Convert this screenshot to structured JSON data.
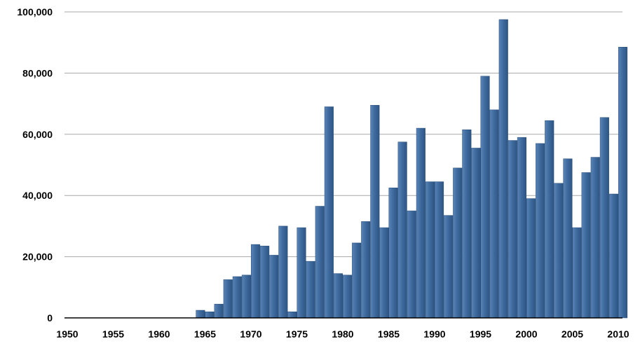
{
  "chart_data": {
    "type": "bar",
    "title": "",
    "xlabel": "",
    "ylabel": "",
    "x_ticks": [
      "1950",
      "1955",
      "1960",
      "1965",
      "1970",
      "1975",
      "1980",
      "1985",
      "1990",
      "1995",
      "2000",
      "2005",
      "2010"
    ],
    "y_ticks": [
      "0",
      "20,000",
      "40,000",
      "60,000",
      "80,000",
      "100,000"
    ],
    "xlim": [
      1950,
      2010
    ],
    "ylim": [
      0,
      100000
    ],
    "grid": true,
    "bar_color": "#3f6b9f",
    "x": [
      1964,
      1965,
      1966,
      1967,
      1968,
      1969,
      1970,
      1971,
      1972,
      1973,
      1974,
      1975,
      1976,
      1977,
      1978,
      1979,
      1980,
      1981,
      1982,
      1983,
      1984,
      1985,
      1986,
      1987,
      1988,
      1989,
      1990,
      1991,
      1992,
      1993,
      1994,
      1995,
      1996,
      1997,
      1998,
      1999,
      2000,
      2001,
      2002,
      2003,
      2004,
      2005,
      2006,
      2007,
      2008,
      2009,
      2010
    ],
    "values": [
      2500,
      2000,
      4500,
      12500,
      13500,
      14000,
      24000,
      23500,
      20500,
      30000,
      2000,
      29500,
      18500,
      36500,
      69000,
      14500,
      14000,
      24500,
      31500,
      69500,
      29500,
      42500,
      57500,
      35000,
      62000,
      44500,
      44500,
      33500,
      49000,
      61500,
      55500,
      79000,
      68000,
      97500,
      58000,
      59000,
      39000,
      57000,
      64500,
      44000,
      52000,
      29500,
      47500,
      52500,
      65500,
      40500,
      88500
    ]
  }
}
